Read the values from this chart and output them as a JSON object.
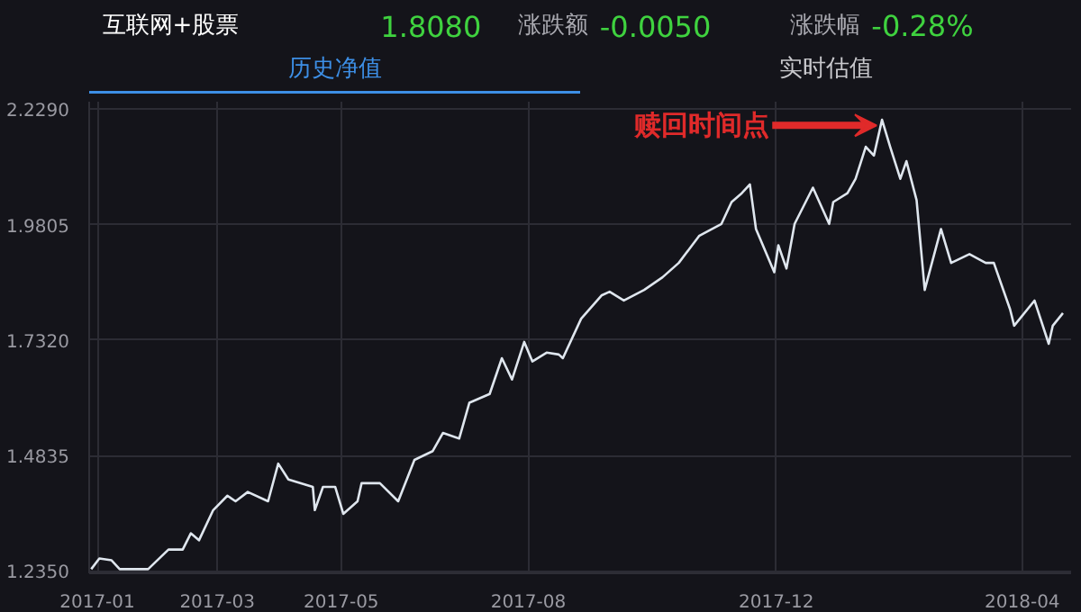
{
  "chart_data": {
    "type": "line",
    "title": "互联网+股票",
    "annotations": [
      "1.8080",
      "涨跌额",
      "-0.0050",
      "涨跌幅",
      "-0.28%",
      "历史净值",
      "实时估值",
      {
        "text": "赎回时间点",
        "x": "2018-01-22",
        "y": 2.206
      }
    ],
    "xlim": [
      "2016-12-28",
      "2018-04-25"
    ],
    "xticks": [
      "2017-01",
      "2017-03",
      "2017-05",
      "2017-08",
      "2017-12",
      "2018-04"
    ],
    "ylim": [
      1.23,
      2.245
    ],
    "yticks": [
      {
        "value": 1.235,
        "label": "1.2350"
      },
      {
        "value": 1.4835,
        "label": "1.4835"
      },
      {
        "value": 1.732,
        "label": "1.7320"
      },
      {
        "value": 1.9805,
        "label": "1.9805"
      },
      {
        "value": 2.229,
        "label": "2.2290"
      }
    ],
    "grid": true,
    "marker": "none",
    "line_style": "solid",
    "series": [
      {
        "color": "#dfe6ee",
        "x": [
          "2016-12-29",
          "2017-01-02",
          "2017-01-08",
          "2017-01-12",
          "2017-01-26",
          "2017-02-05",
          "2017-02-12",
          "2017-02-16",
          "2017-02-20",
          "2017-02-27",
          "2017-03-06",
          "2017-03-10",
          "2017-03-16",
          "2017-03-26",
          "2017-03-31",
          "2017-04-05",
          "2017-04-17",
          "2017-04-18",
          "2017-04-22",
          "2017-04-28",
          "2017-05-02",
          "2017-05-09",
          "2017-05-11",
          "2017-05-20",
          "2017-05-29",
          "2017-06-06",
          "2017-06-15",
          "2017-06-20",
          "2017-06-28",
          "2017-07-03",
          "2017-07-13",
          "2017-07-19",
          "2017-07-24",
          "2017-07-30",
          "2017-08-03",
          "2017-08-10",
          "2017-08-16",
          "2017-08-18",
          "2017-08-27",
          "2017-09-06",
          "2017-09-10",
          "2017-09-17",
          "2017-09-27",
          "2017-10-06",
          "2017-10-14",
          "2017-10-24",
          "2017-11-04",
          "2017-11-09",
          "2017-11-14",
          "2017-11-18",
          "2017-11-21",
          "2017-11-30",
          "2017-12-02",
          "2017-12-06",
          "2017-12-10",
          "2017-12-19",
          "2017-12-27",
          "2017-12-29",
          "2018-01-05",
          "2018-01-09",
          "2018-01-14",
          "2018-01-18",
          "2018-01-22",
          "2018-01-26",
          "2018-01-31",
          "2018-02-03",
          "2018-02-08",
          "2018-02-12",
          "2018-02-20",
          "2018-02-25",
          "2018-03-06",
          "2018-03-14",
          "2018-03-18",
          "2018-03-26",
          "2018-03-28",
          "2018-04-07",
          "2018-04-14",
          "2018-04-16",
          "2018-04-21"
        ],
        "values": [
          1.239,
          1.262,
          1.258,
          1.239,
          1.239,
          1.281,
          1.281,
          1.316,
          1.301,
          1.366,
          1.397,
          1.385,
          1.405,
          1.385,
          1.466,
          1.432,
          1.416,
          1.366,
          1.416,
          1.416,
          1.358,
          1.385,
          1.424,
          1.424,
          1.385,
          1.474,
          1.493,
          1.532,
          1.52,
          1.597,
          1.616,
          1.693,
          1.647,
          1.728,
          1.686,
          1.705,
          1.701,
          1.693,
          1.778,
          1.828,
          1.836,
          1.817,
          1.84,
          1.867,
          1.898,
          1.956,
          1.982,
          2.029,
          2.048,
          2.067,
          1.971,
          1.878,
          1.936,
          1.886,
          1.982,
          2.06,
          1.982,
          2.029,
          2.048,
          2.079,
          2.148,
          2.129,
          2.206,
          2.148,
          2.079,
          2.117,
          2.033,
          1.84,
          1.971,
          1.898,
          1.917,
          1.898,
          1.898,
          1.798,
          1.763,
          1.817,
          1.724,
          1.763,
          1.79
        ]
      }
    ]
  }
}
